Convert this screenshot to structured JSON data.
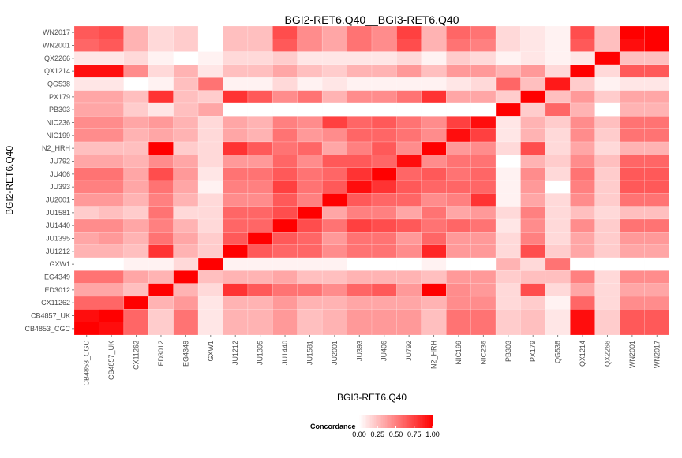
{
  "chart_data": {
    "type": "heatmap",
    "title": "BGI2-RET6.Q40__BGI3-RET6.Q40",
    "xlabel": "BGI3-RET6.Q40",
    "ylabel": "BGI2-RET6.Q40",
    "x_categories": [
      "CB4853_CGC",
      "CB4857_UK",
      "CX11262",
      "ED3012",
      "EG4349",
      "GXW1",
      "JU1212",
      "JU1395",
      "JU1440",
      "JU1581",
      "JU2001",
      "JU393",
      "JU406",
      "JU792",
      "N2_HRH",
      "NIC199",
      "NIC236",
      "PB303",
      "PX179",
      "QG538",
      "QX1214",
      "QX2266",
      "WN2001",
      "WN2017"
    ],
    "y_categories_top_to_bottom": [
      "WN2017",
      "WN2001",
      "QX2266",
      "QX1214",
      "QG538",
      "PX179",
      "PB303",
      "NIC236",
      "NIC199",
      "N2_HRH",
      "JU792",
      "JU406",
      "JU393",
      "JU2001",
      "JU1581",
      "JU1440",
      "JU1395",
      "JU1212",
      "GXW1",
      "EG4349",
      "ED3012",
      "CX11262",
      "CB4857_UK",
      "CB4853_CGC"
    ],
    "values": [
      [
        0.65,
        0.7,
        0.3,
        0.15,
        0.2,
        0.0,
        0.25,
        0.25,
        0.7,
        0.45,
        0.35,
        0.55,
        0.45,
        0.75,
        0.3,
        0.6,
        0.55,
        0.15,
        0.1,
        0.05,
        0.7,
        0.25,
        1.0,
        1.0
      ],
      [
        0.6,
        0.65,
        0.3,
        0.15,
        0.2,
        0.0,
        0.25,
        0.25,
        0.65,
        0.45,
        0.35,
        0.55,
        0.45,
        0.7,
        0.3,
        0.55,
        0.5,
        0.15,
        0.1,
        0.05,
        0.65,
        0.25,
        0.95,
        1.0
      ],
      [
        0.1,
        0.1,
        0.15,
        0.05,
        0.0,
        0.05,
        0.15,
        0.15,
        0.2,
        0.1,
        0.1,
        0.1,
        0.1,
        0.15,
        0.05,
        0.2,
        0.15,
        0.05,
        0.1,
        0.05,
        0.1,
        1.0,
        0.25,
        0.25
      ],
      [
        0.95,
        0.95,
        0.45,
        0.15,
        0.3,
        0.1,
        0.25,
        0.25,
        0.35,
        0.25,
        0.2,
        0.3,
        0.3,
        0.4,
        0.25,
        0.4,
        0.4,
        0.3,
        0.4,
        0.15,
        1.0,
        0.15,
        0.65,
        0.65
      ],
      [
        0.1,
        0.1,
        0.0,
        0.05,
        0.25,
        0.55,
        0.05,
        0.05,
        0.15,
        0.05,
        0.1,
        0.05,
        0.05,
        0.05,
        0.05,
        0.1,
        0.15,
        0.6,
        0.25,
        0.9,
        0.2,
        0.05,
        0.1,
        0.1
      ],
      [
        0.35,
        0.35,
        0.25,
        0.8,
        0.25,
        0.2,
        0.8,
        0.65,
        0.45,
        0.55,
        0.3,
        0.45,
        0.45,
        0.55,
        0.8,
        0.35,
        0.35,
        0.2,
        1.0,
        0.25,
        0.4,
        0.2,
        0.35,
        0.35
      ],
      [
        0.35,
        0.35,
        0.2,
        0.1,
        0.25,
        0.35,
        0.0,
        0.0,
        0.0,
        0.0,
        0.0,
        0.0,
        0.0,
        0.0,
        0.0,
        0.0,
        0.0,
        1.0,
        0.2,
        0.6,
        0.3,
        0.0,
        0.3,
        0.3
      ],
      [
        0.45,
        0.45,
        0.35,
        0.4,
        0.3,
        0.15,
        0.35,
        0.3,
        0.5,
        0.45,
        0.75,
        0.6,
        0.65,
        0.55,
        0.45,
        0.75,
        0.95,
        0.1,
        0.3,
        0.2,
        0.45,
        0.25,
        0.55,
        0.55
      ],
      [
        0.45,
        0.45,
        0.3,
        0.35,
        0.3,
        0.15,
        0.35,
        0.3,
        0.55,
        0.4,
        0.45,
        0.6,
        0.6,
        0.55,
        0.45,
        0.95,
        0.75,
        0.1,
        0.3,
        0.15,
        0.45,
        0.2,
        0.55,
        0.55
      ],
      [
        0.25,
        0.25,
        0.25,
        1.0,
        0.2,
        0.15,
        0.8,
        0.65,
        0.55,
        0.6,
        0.35,
        0.5,
        0.65,
        0.45,
        1.0,
        0.4,
        0.45,
        0.15,
        0.7,
        0.15,
        0.35,
        0.15,
        0.3,
        0.3
      ],
      [
        0.35,
        0.35,
        0.3,
        0.45,
        0.35,
        0.15,
        0.4,
        0.4,
        0.6,
        0.45,
        0.65,
        0.65,
        0.6,
        0.95,
        0.45,
        0.55,
        0.55,
        0.0,
        0.3,
        0.2,
        0.45,
        0.25,
        0.6,
        0.6
      ],
      [
        0.55,
        0.55,
        0.35,
        0.7,
        0.4,
        0.1,
        0.55,
        0.55,
        0.65,
        0.55,
        0.6,
        0.8,
        1.0,
        0.6,
        0.65,
        0.55,
        0.6,
        0.05,
        0.45,
        0.15,
        0.55,
        0.2,
        0.65,
        0.65
      ],
      [
        0.5,
        0.5,
        0.35,
        0.55,
        0.35,
        0.05,
        0.5,
        0.5,
        0.75,
        0.55,
        0.65,
        0.95,
        0.8,
        0.65,
        0.6,
        0.6,
        0.6,
        0.05,
        0.4,
        0.0,
        0.5,
        0.2,
        0.65,
        0.65
      ],
      [
        0.4,
        0.4,
        0.3,
        0.5,
        0.3,
        0.15,
        0.45,
        0.45,
        0.65,
        0.5,
        1.0,
        0.65,
        0.6,
        0.6,
        0.45,
        0.5,
        0.8,
        0.05,
        0.35,
        0.15,
        0.45,
        0.2,
        0.55,
        0.55
      ],
      [
        0.2,
        0.25,
        0.2,
        0.55,
        0.15,
        0.15,
        0.6,
        0.6,
        0.7,
        1.0,
        0.35,
        0.5,
        0.5,
        0.35,
        0.55,
        0.35,
        0.4,
        0.15,
        0.5,
        0.15,
        0.25,
        0.15,
        0.25,
        0.25
      ],
      [
        0.45,
        0.45,
        0.35,
        0.5,
        0.3,
        0.15,
        0.6,
        0.6,
        1.0,
        0.7,
        0.55,
        0.75,
        0.7,
        0.65,
        0.55,
        0.6,
        0.55,
        0.1,
        0.45,
        0.15,
        0.45,
        0.2,
        0.55,
        0.55
      ],
      [
        0.35,
        0.4,
        0.3,
        0.55,
        0.35,
        0.2,
        0.65,
        1.0,
        0.65,
        0.6,
        0.4,
        0.55,
        0.55,
        0.4,
        0.6,
        0.4,
        0.4,
        0.15,
        0.5,
        0.15,
        0.35,
        0.2,
        0.4,
        0.4
      ],
      [
        0.3,
        0.3,
        0.25,
        0.8,
        0.3,
        0.2,
        1.0,
        0.65,
        0.6,
        0.6,
        0.45,
        0.55,
        0.55,
        0.45,
        0.85,
        0.4,
        0.4,
        0.15,
        0.7,
        0.2,
        0.35,
        0.2,
        0.35,
        0.35
      ],
      [
        0.0,
        0.0,
        0.05,
        0.05,
        0.15,
        1.0,
        0.05,
        0.05,
        0.05,
        0.05,
        0.05,
        0.0,
        0.0,
        0.0,
        0.05,
        0.0,
        0.0,
        0.3,
        0.15,
        0.55,
        0.0,
        0.0,
        0.0,
        0.0
      ],
      [
        0.55,
        0.55,
        0.35,
        0.3,
        1.0,
        0.25,
        0.3,
        0.3,
        0.35,
        0.25,
        0.25,
        0.3,
        0.3,
        0.3,
        0.25,
        0.4,
        0.4,
        0.2,
        0.25,
        0.25,
        0.5,
        0.15,
        0.45,
        0.45
      ],
      [
        0.35,
        0.35,
        0.25,
        1.0,
        0.3,
        0.15,
        0.8,
        0.65,
        0.55,
        0.55,
        0.45,
        0.6,
        0.65,
        0.4,
        1.0,
        0.45,
        0.4,
        0.15,
        0.7,
        0.15,
        0.35,
        0.15,
        0.35,
        0.35
      ],
      [
        0.6,
        0.6,
        1.0,
        0.3,
        0.4,
        0.1,
        0.3,
        0.3,
        0.4,
        0.3,
        0.3,
        0.35,
        0.35,
        0.35,
        0.3,
        0.45,
        0.45,
        0.15,
        0.2,
        0.05,
        0.6,
        0.15,
        0.45,
        0.45
      ],
      [
        0.95,
        1.0,
        0.6,
        0.2,
        0.55,
        0.1,
        0.3,
        0.3,
        0.4,
        0.25,
        0.3,
        0.4,
        0.4,
        0.4,
        0.25,
        0.55,
        0.55,
        0.2,
        0.25,
        0.1,
        0.95,
        0.2,
        0.65,
        0.65
      ],
      [
        1.0,
        0.95,
        0.6,
        0.2,
        0.55,
        0.1,
        0.3,
        0.3,
        0.4,
        0.25,
        0.3,
        0.4,
        0.4,
        0.4,
        0.25,
        0.55,
        0.55,
        0.2,
        0.25,
        0.1,
        0.95,
        0.2,
        0.65,
        0.65
      ]
    ],
    "legend": {
      "title": "Concordance",
      "placement": "bottom",
      "ticks": [
        "0.00",
        "0.25",
        "0.50",
        "0.75",
        "1.00"
      ],
      "range": [
        0,
        1
      ]
    },
    "color_low": "#ffffff",
    "color_high": "#ff0000",
    "panel_background": "#ebebeb",
    "grid": true
  }
}
